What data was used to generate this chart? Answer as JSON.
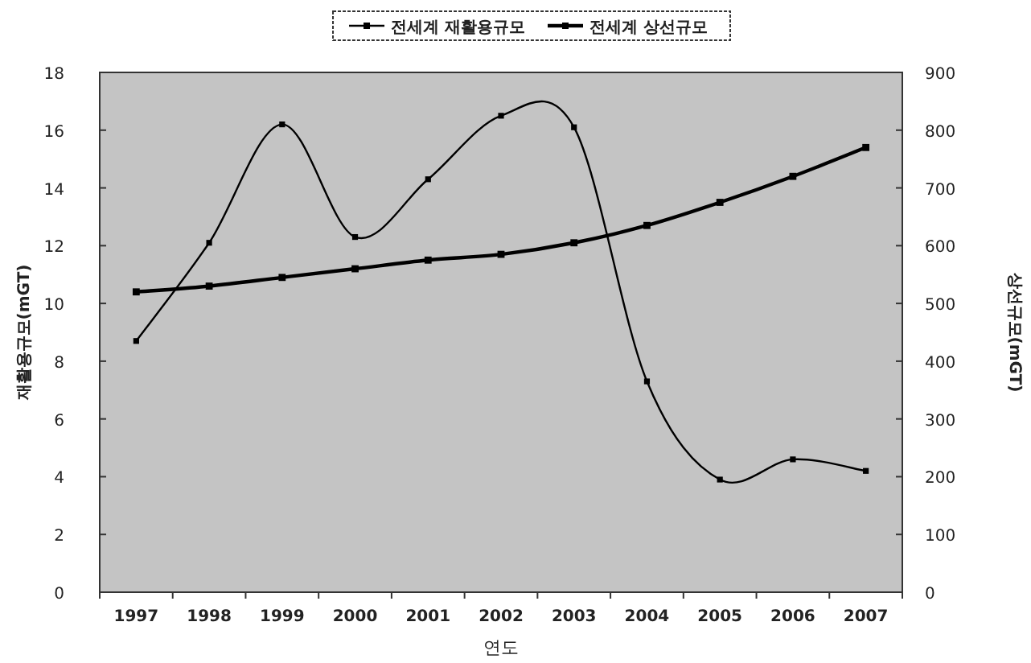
{
  "chart_data": {
    "type": "line",
    "xlabel": "연도",
    "ylabel": "재활용규모(mGT)",
    "y2label": "상선규모(mGT)",
    "categories": [
      "1997",
      "1998",
      "1999",
      "2000",
      "2001",
      "2002",
      "2003",
      "2004",
      "2005",
      "2006",
      "2007"
    ],
    "series": [
      {
        "name": "전세계 재활용규모",
        "color": "#000000",
        "values": [
          8.7,
          12.1,
          16.2,
          12.3,
          14.3,
          16.5,
          16.1,
          7.3,
          3.9,
          4.6,
          4.2
        ]
      },
      {
        "name": "전세계 상선규모",
        "color": "#000000",
        "axis": "y2",
        "values": [
          520,
          530,
          545,
          560,
          575,
          585,
          605,
          635,
          675,
          720,
          770
        ]
      }
    ],
    "ylim": [
      0,
      18
    ],
    "yticks": [
      0,
      2,
      4,
      6,
      8,
      10,
      12,
      14,
      16,
      18
    ],
    "y2lim": [
      0,
      900
    ],
    "y2ticks": [
      0,
      100,
      200,
      300,
      400,
      500,
      600,
      700,
      800,
      900
    ],
    "legend": "top",
    "marker": "square",
    "grid": false
  }
}
